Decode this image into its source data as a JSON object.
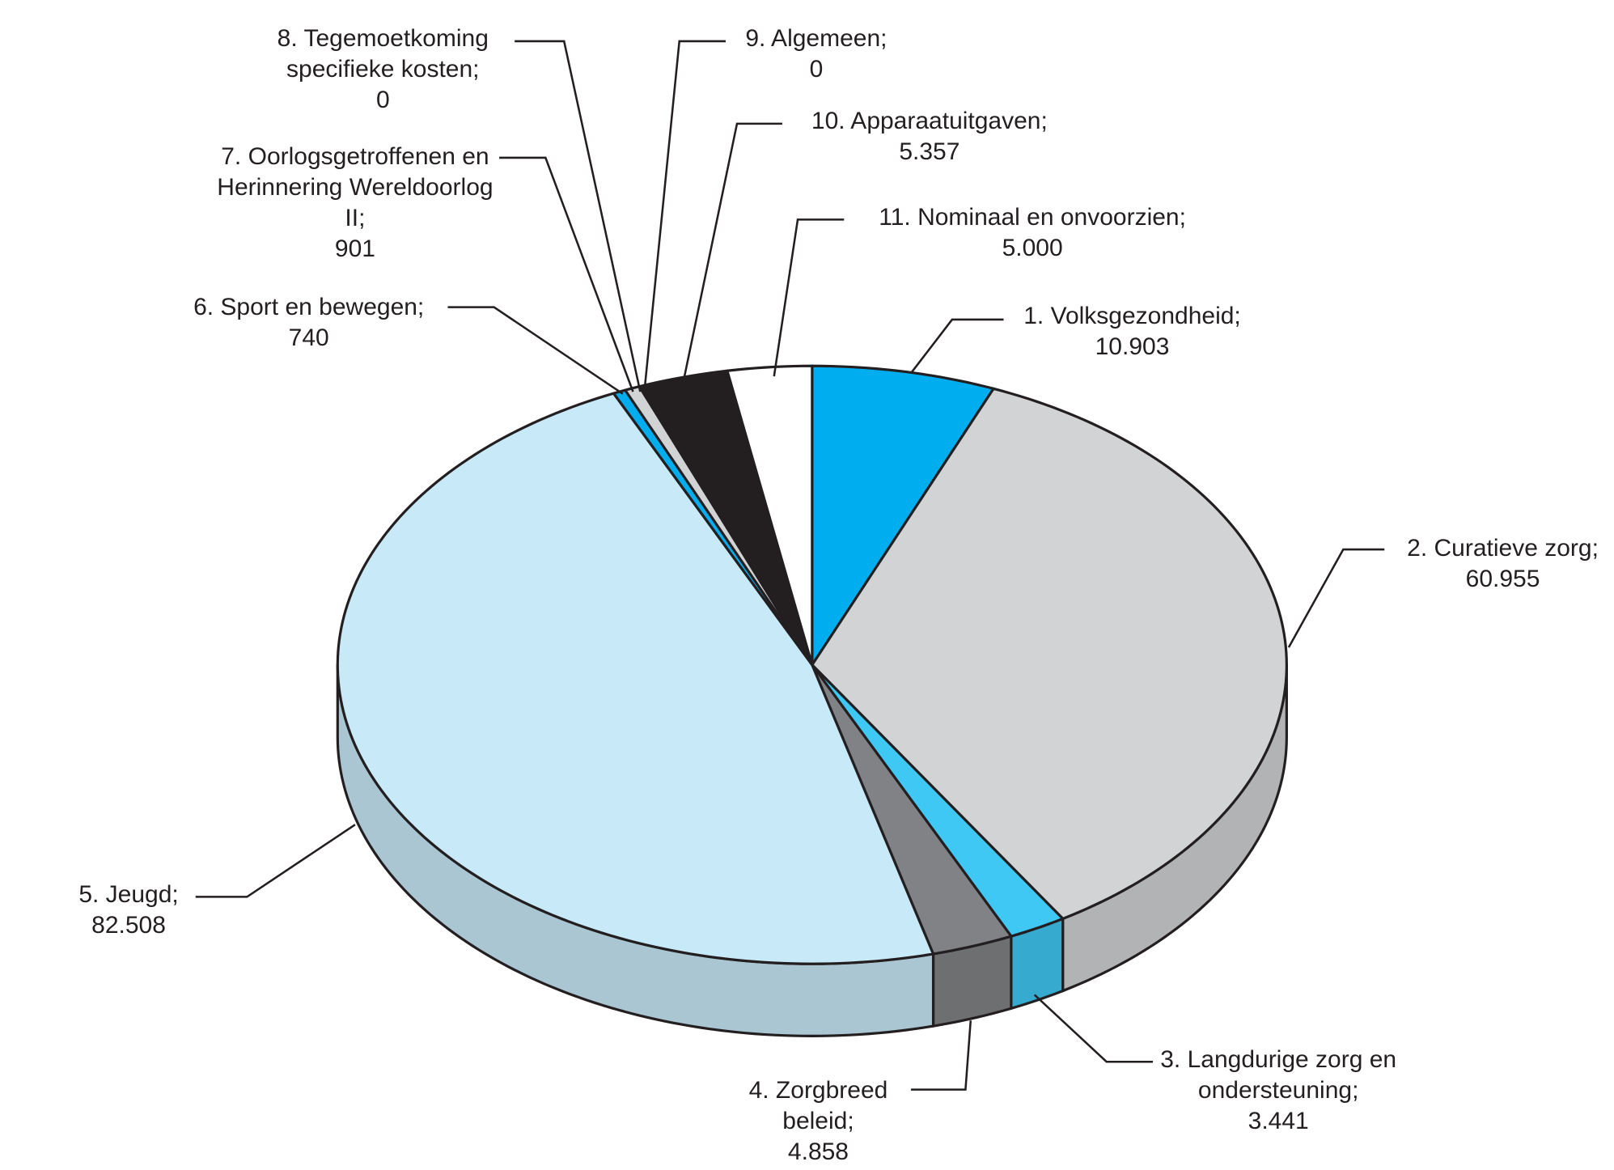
{
  "chart_data": {
    "type": "pie3d",
    "categories": [
      "1. Volksgezondheid;",
      "2. Curatieve zorg;",
      "3. Langdurige zorg en ondersteuning;",
      "4. Zorgbreed beleid;",
      "5. Jeugd;",
      "6. Sport en bewegen;",
      "7. Oorlogsgetroffenen en Herinnering Wereldoorlog II;",
      "8. Tegemoetkoming specifieke kosten;",
      "9. Algemeen;",
      "10. Apparaatuitgaven;",
      "11. Nominaal en onvoorzien;"
    ],
    "values": [
      10903,
      60955,
      3441,
      4858,
      82508,
      740,
      901,
      0,
      0,
      5357,
      5000
    ],
    "value_labels": [
      "10.903",
      "60.955",
      "3.441",
      "4.858",
      "82.508",
      "740",
      "901",
      "0",
      "0",
      "5.357",
      "5.000"
    ],
    "colors": [
      "#00aeef",
      "#d1d3d4",
      "#3fc8f4",
      "#808285",
      "#c8e9f8",
      "#00aeef",
      "#d1d3d4",
      "#d1d3d4",
      "#d1d3d4",
      "#231f20",
      "#ffffff"
    ]
  }
}
